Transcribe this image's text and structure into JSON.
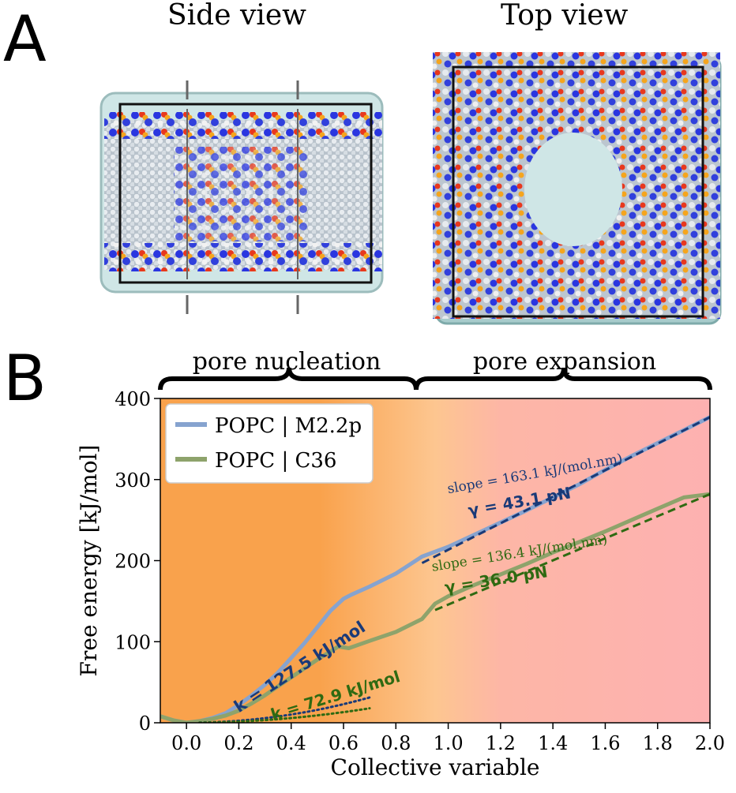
{
  "panel_a": {
    "letter": "A",
    "side_title": "Side view",
    "top_title": "Top view"
  },
  "panel_b": {
    "letter": "B",
    "region_nucleation": "pore nucleation",
    "region_expansion": "pore expansion"
  },
  "colors": {
    "m22p": "#86a3cf",
    "c36": "#8ea36b",
    "fit_m22p": "#1a3a78",
    "fit_c36": "#2f6a12",
    "nucleation_bg": "#fba85a",
    "expansion_bg": "#fdb2b2"
  },
  "chart_data": {
    "type": "line",
    "xlabel": "Collective variable",
    "ylabel": "Free energy [kJ/mol]",
    "xlim": [
      -0.1,
      2.0
    ],
    "ylim": [
      0,
      400
    ],
    "xticks": [
      "0.0",
      "0.2",
      "0.4",
      "0.6",
      "0.8",
      "1.0",
      "1.2",
      "1.4",
      "1.6",
      "1.8",
      "2.0"
    ],
    "yticks": [
      "0",
      "100",
      "200",
      "300",
      "400"
    ],
    "legend_position": "top-left",
    "series": [
      {
        "name": "POPC | M2.2p",
        "x": [
          -0.1,
          -0.05,
          0.0,
          0.05,
          0.1,
          0.15,
          0.2,
          0.25,
          0.3,
          0.35,
          0.4,
          0.45,
          0.5,
          0.55,
          0.6,
          0.63,
          0.7,
          0.8,
          0.9,
          1.0,
          1.1,
          1.2,
          1.3,
          1.4,
          1.5,
          1.6,
          1.7,
          1.8,
          1.9,
          2.0
        ],
        "y": [
          8,
          3,
          0,
          2,
          6,
          12,
          22,
          34,
          47,
          62,
          80,
          98,
          118,
          138,
          153,
          158,
          168,
          184,
          205,
          217,
          232,
          247,
          262,
          278,
          294,
          312,
          329,
          345,
          361,
          377
        ]
      },
      {
        "name": "POPC | C36",
        "x": [
          -0.1,
          -0.05,
          0.0,
          0.05,
          0.1,
          0.15,
          0.2,
          0.25,
          0.3,
          0.35,
          0.4,
          0.45,
          0.5,
          0.55,
          0.58,
          0.62,
          0.7,
          0.8,
          0.9,
          0.95,
          1.0,
          1.1,
          1.2,
          1.3,
          1.4,
          1.5,
          1.6,
          1.7,
          1.8,
          1.9,
          2.0
        ],
        "y": [
          8,
          3,
          0,
          2,
          5,
          9,
          15,
          24,
          34,
          45,
          56,
          67,
          78,
          88,
          94,
          92,
          101,
          112,
          128,
          147,
          156,
          170,
          183,
          196,
          210,
          223,
          236,
          250,
          264,
          278,
          282
        ]
      }
    ],
    "fits": [
      {
        "series": "POPC | M2.2p",
        "kind": "quadratic",
        "label": "k = 127.5 kJ/mol",
        "x": [
          0.05,
          0.7
        ],
        "k": 127.5
      },
      {
        "series": "POPC | C36",
        "kind": "quadratic",
        "label": "k = 72.9 kJ/mol",
        "x": [
          0.05,
          0.7
        ],
        "k": 72.9
      },
      {
        "series": "POPC | M2.2p",
        "kind": "linear",
        "x": [
          0.9,
          2.0
        ],
        "y": [
          197,
          377
        ],
        "slope_label": "slope = 163.1 kJ/(mol.nm)",
        "gamma_label": "γ = 43.1 pN"
      },
      {
        "series": "POPC | C36",
        "kind": "linear",
        "x": [
          0.95,
          2.0
        ],
        "y": [
          139,
          282
        ],
        "slope_label": "slope = 136.4 kJ/(mol.nm)",
        "gamma_label": "γ = 36.0 pN"
      }
    ]
  }
}
